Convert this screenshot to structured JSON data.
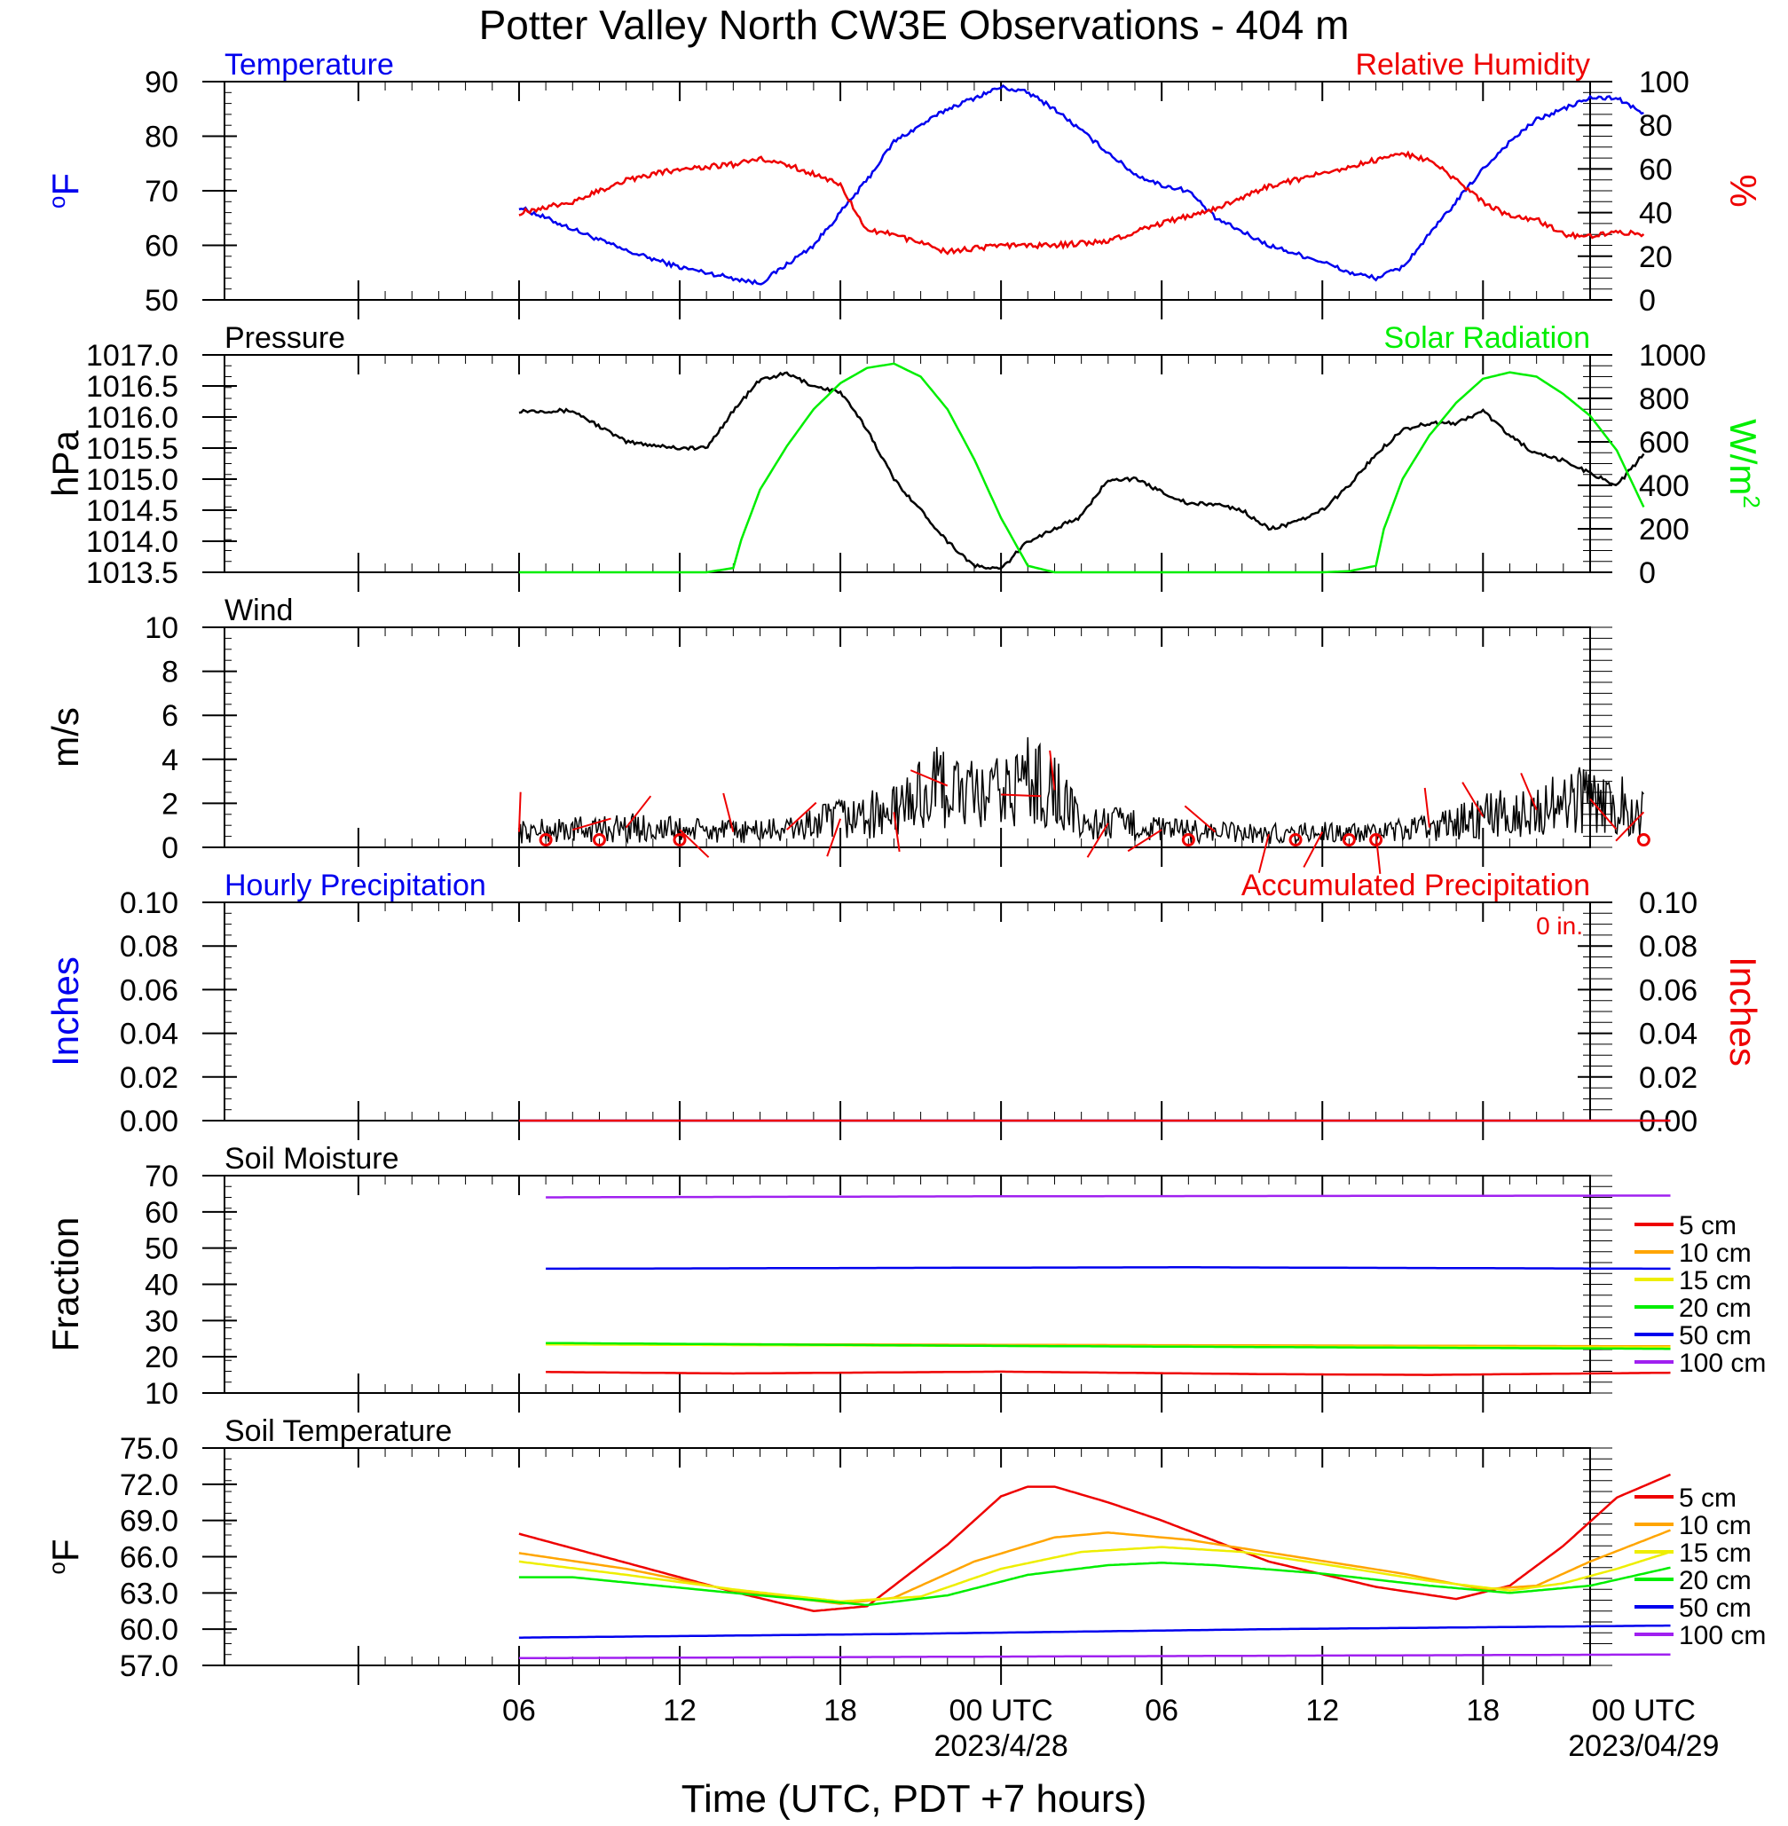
{
  "page": {
    "title": "Potter Valley North CW3E Observations - 404 m",
    "xlabel": "Time (UTC, PDT +7 hours)"
  },
  "x_axis": {
    "hours_range": [
      -5,
      46
    ],
    "ticks": [
      {
        "hour": 6,
        "label": "06",
        "date": ""
      },
      {
        "hour": 12,
        "label": "12",
        "date": ""
      },
      {
        "hour": 18,
        "label": "18",
        "date": ""
      },
      {
        "hour": 24,
        "label": "00 UTC",
        "date": "2023/4/28"
      },
      {
        "hour": 30,
        "label": "06",
        "date": ""
      },
      {
        "hour": 36,
        "label": "12",
        "date": ""
      },
      {
        "hour": 42,
        "label": "18",
        "date": ""
      },
      {
        "hour": 48,
        "label": "00 UTC",
        "date": "2023/04/29"
      }
    ]
  },
  "colors": {
    "temperature": "#0000ee",
    "humidity": "#ee0000",
    "pressure": "#000000",
    "solar": "#00ee00",
    "wind": "#000000",
    "barbs": "#ee0000",
    "precip_hourly": "#0000ee",
    "precip_accum": "#ee0000"
  },
  "chart_data": [
    {
      "id": "temp_rh",
      "type": "line",
      "title_left": "Temperature",
      "title_right": "Relative Humidity",
      "ylabel_left": "oF",
      "ylabel_right": "%",
      "ylim_left": [
        50,
        90
      ],
      "ylim_right": [
        0,
        100
      ],
      "yticks_left": [
        "50",
        "60",
        "70",
        "80",
        "90"
      ],
      "yticks_right": [
        "0",
        "20",
        "40",
        "60",
        "80",
        "100"
      ],
      "series": [
        {
          "name": "Temperature",
          "axis": "left",
          "color": "#0000ee",
          "x": [
            6,
            8,
            10,
            12,
            14,
            15,
            17,
            18,
            19,
            20,
            22,
            23,
            24,
            25,
            26,
            27,
            28,
            29,
            30,
            31,
            32,
            34,
            36,
            37,
            38,
            39,
            40,
            41,
            42,
            43,
            44,
            45,
            46,
            47,
            48
          ],
          "y": [
            67,
            63,
            59,
            56,
            54,
            53,
            60,
            66,
            72,
            79,
            85,
            87,
            89,
            88,
            85,
            81,
            77,
            73,
            71,
            70,
            65,
            60,
            57,
            55,
            54,
            56,
            62,
            68,
            74,
            79,
            83,
            85,
            87,
            87,
            84
          ]
        },
        {
          "name": "Relative Humidity",
          "axis": "right",
          "color": "#ee0000",
          "x": [
            6,
            8,
            10,
            12,
            14,
            15,
            16,
            18,
            19,
            20,
            22,
            24,
            26,
            28,
            30,
            32,
            34,
            36,
            38,
            39,
            40,
            41,
            42,
            43,
            44,
            45,
            46,
            47,
            48
          ],
          "y": [
            40,
            45,
            55,
            60,
            62,
            65,
            62,
            53,
            32,
            30,
            22,
            25,
            25,
            27,
            35,
            42,
            52,
            58,
            64,
            67,
            64,
            55,
            45,
            38,
            37,
            30,
            29,
            31,
            30
          ]
        }
      ]
    },
    {
      "id": "pressure_solar",
      "type": "line",
      "title_left": "Pressure",
      "title_right": "Solar Radiation",
      "ylabel_left": "hPa",
      "ylabel_right": "W/m2",
      "ylim_left": [
        1013.5,
        1017.0
      ],
      "ylim_right": [
        0,
        1000
      ],
      "yticks_left": [
        "1013.5",
        "1014.0",
        "1014.5",
        "1015.0",
        "1015.5",
        "1016.0",
        "1016.5",
        "1017.0"
      ],
      "yticks_right": [
        "0",
        "200",
        "400",
        "600",
        "800",
        "1000"
      ],
      "series": [
        {
          "name": "Pressure",
          "axis": "left",
          "color": "#000000",
          "x": [
            6,
            8,
            10,
            12,
            13,
            14,
            15,
            16,
            17,
            18,
            19,
            20,
            21,
            22,
            23,
            24,
            25,
            26,
            27,
            28,
            29,
            30,
            31,
            32,
            33,
            34,
            35,
            36,
            37,
            38,
            39,
            40,
            41,
            42,
            43,
            44,
            45,
            46,
            47,
            48
          ],
          "y": [
            1016.1,
            1016.1,
            1015.6,
            1015.5,
            1015.5,
            1016.1,
            1016.6,
            1016.7,
            1016.5,
            1016.4,
            1015.8,
            1015.0,
            1014.5,
            1014.0,
            1013.6,
            1013.55,
            1014.0,
            1014.2,
            1014.4,
            1015.0,
            1015.0,
            1014.8,
            1014.6,
            1014.6,
            1014.5,
            1014.2,
            1014.3,
            1014.5,
            1014.9,
            1015.4,
            1015.8,
            1015.9,
            1015.9,
            1016.1,
            1015.7,
            1015.4,
            1015.3,
            1015.1,
            1014.9,
            1015.4
          ]
        },
        {
          "name": "Solar Radiation",
          "axis": "right",
          "color": "#00ee00",
          "x": [
            6,
            13,
            14,
            14.3,
            15,
            16,
            17,
            18,
            19,
            20,
            21,
            22,
            23,
            24,
            25,
            26,
            27,
            28,
            29,
            30,
            31,
            32,
            33,
            34,
            35,
            36,
            37,
            38,
            38.3,
            39,
            40,
            41,
            42,
            43,
            44,
            45,
            46,
            47,
            48
          ],
          "y": [
            0,
            0,
            20,
            150,
            380,
            580,
            750,
            870,
            940,
            960,
            900,
            750,
            520,
            250,
            30,
            0,
            0,
            0,
            0,
            0,
            0,
            0,
            0,
            0,
            0,
            0,
            5,
            30,
            200,
            430,
            630,
            780,
            890,
            920,
            900,
            820,
            720,
            560,
            300
          ]
        }
      ]
    },
    {
      "id": "wind",
      "type": "line",
      "title_left": "Wind",
      "ylabel_left": "m/s",
      "ylim_left": [
        0,
        10
      ],
      "yticks_left": [
        "0",
        "2",
        "4",
        "6",
        "8",
        "10"
      ],
      "series": [
        {
          "name": "Wind",
          "axis": "left",
          "color": "#000000",
          "x": [
            6,
            8,
            10,
            12,
            14,
            16,
            18,
            20,
            21,
            22,
            23,
            24,
            25,
            26,
            27,
            28,
            29,
            30,
            32,
            34,
            36,
            38,
            40,
            42,
            44,
            46,
            47,
            48
          ],
          "y": [
            0.7,
            0.8,
            0.9,
            0.8,
            0.7,
            0.8,
            1.3,
            1.6,
            2.4,
            2.8,
            2.2,
            2.4,
            3.1,
            2.6,
            1.0,
            1.1,
            1.0,
            0.8,
            0.7,
            0.6,
            0.7,
            0.6,
            0.9,
            1.4,
            1.7,
            2.2,
            2.0,
            1.6
          ]
        }
      ],
      "barbs_hours": [
        6,
        8,
        10,
        12,
        14,
        16,
        18,
        20,
        22,
        24,
        26,
        28,
        30,
        32,
        34,
        36,
        38,
        40,
        42,
        44,
        46,
        48
      ],
      "calm_hours": [
        7,
        9,
        12,
        31,
        35,
        37,
        38,
        48
      ]
    },
    {
      "id": "precip",
      "type": "line",
      "title_left": "Hourly Precipitation",
      "title_right": "Accumulated Precipitation",
      "annotation": "0 in.",
      "ylabel_left": "Inches",
      "ylabel_right": "Inches",
      "ylim_left": [
        0,
        0.1
      ],
      "ylim_right": [
        0,
        0.1
      ],
      "yticks_left": [
        "0.00",
        "0.02",
        "0.04",
        "0.06",
        "0.08",
        "0.10"
      ],
      "yticks_right": [
        "0.00",
        "0.02",
        "0.04",
        "0.06",
        "0.08",
        "0.10"
      ],
      "series": [
        {
          "name": "Hourly Precipitation",
          "axis": "left",
          "color": "#0000ee",
          "x": [
            6,
            49
          ],
          "y": [
            0,
            0
          ]
        },
        {
          "name": "Accumulated Precipitation",
          "axis": "left",
          "color": "#ee0000",
          "x": [
            6,
            49
          ],
          "y": [
            0,
            0
          ]
        }
      ]
    },
    {
      "id": "soil_moisture",
      "type": "line",
      "title_left": "Soil Moisture",
      "ylabel_left": "Fraction",
      "ylim_left": [
        10,
        70
      ],
      "yticks_left": [
        "10",
        "20",
        "30",
        "40",
        "50",
        "60",
        "70"
      ],
      "legend": [
        "5 cm",
        "10 cm",
        "15 cm",
        "20 cm",
        "50 cm",
        "100 cm"
      ],
      "series": [
        {
          "name": "5 cm",
          "color": "#ee0000",
          "x": [
            7,
            14,
            24,
            34,
            40,
            49
          ],
          "y": [
            15.8,
            15.4,
            15.9,
            15.2,
            15.0,
            15.6
          ]
        },
        {
          "name": "10 cm",
          "color": "#ffa500",
          "x": [
            7,
            24,
            49
          ],
          "y": [
            23.6,
            23.3,
            22.9
          ]
        },
        {
          "name": "15 cm",
          "color": "#eeee00",
          "x": [
            7,
            24,
            49
          ],
          "y": [
            23.4,
            23.0,
            22.6
          ]
        },
        {
          "name": "20 cm",
          "color": "#00ee00",
          "x": [
            7,
            24,
            49
          ],
          "y": [
            23.8,
            23.0,
            22.2
          ]
        },
        {
          "name": "50 cm",
          "color": "#0000ee",
          "x": [
            7,
            24,
            31,
            49
          ],
          "y": [
            44.3,
            44.6,
            44.7,
            44.3
          ]
        },
        {
          "name": "100 cm",
          "color": "#a020f0",
          "x": [
            7,
            24,
            49
          ],
          "y": [
            64.0,
            64.3,
            64.5
          ]
        }
      ]
    },
    {
      "id": "soil_temp",
      "type": "line",
      "title_left": "Soil Temperature",
      "ylabel_left": "oF",
      "ylim_left": [
        57,
        75
      ],
      "yticks_left": [
        "57.0",
        "60.0",
        "63.0",
        "66.0",
        "69.0",
        "72.0",
        "75.0"
      ],
      "legend": [
        "5 cm",
        "10 cm",
        "15 cm",
        "20 cm",
        "50 cm",
        "100 cm"
      ],
      "series": [
        {
          "name": "5 cm",
          "color": "#ee0000",
          "x": [
            6,
            10,
            14,
            17,
            19,
            22,
            24,
            25,
            26,
            28,
            30,
            34,
            38,
            41,
            43,
            45,
            47,
            49
          ],
          "y": [
            67.9,
            65.5,
            63.1,
            61.5,
            61.9,
            67.0,
            71.0,
            71.8,
            71.8,
            70.5,
            69.0,
            65.6,
            63.5,
            62.5,
            63.6,
            66.9,
            70.9,
            72.8
          ]
        },
        {
          "name": "10 cm",
          "color": "#ffa500",
          "x": [
            6,
            10,
            14,
            18,
            20,
            23,
            26,
            28,
            31,
            35,
            39,
            42,
            44,
            46,
            49
          ],
          "y": [
            66.3,
            65.0,
            63.2,
            62.1,
            62.6,
            65.6,
            67.6,
            68.0,
            67.4,
            66.0,
            64.6,
            63.3,
            63.6,
            65.6,
            68.2
          ]
        },
        {
          "name": "15 cm",
          "color": "#eeee00",
          "x": [
            6,
            10,
            14,
            18,
            21,
            24,
            27,
            30,
            33,
            36,
            40,
            43,
            45,
            47,
            49
          ],
          "y": [
            65.6,
            64.5,
            63.3,
            62.3,
            62.7,
            65.0,
            66.4,
            66.8,
            66.4,
            65.4,
            64.0,
            63.2,
            63.8,
            65.0,
            66.4
          ]
        },
        {
          "name": "20 cm",
          "color": "#00ee00",
          "x": [
            6,
            8,
            14,
            19,
            22,
            25,
            28,
            30,
            32,
            36,
            40,
            43,
            46,
            49
          ],
          "y": [
            64.3,
            64.3,
            63.0,
            62.0,
            62.8,
            64.5,
            65.3,
            65.5,
            65.3,
            64.6,
            63.6,
            63.0,
            63.6,
            65.1
          ]
        },
        {
          "name": "50 cm",
          "color": "#0000ee",
          "x": [
            6,
            20,
            34,
            49
          ],
          "y": [
            59.3,
            59.6,
            60.0,
            60.3
          ]
        },
        {
          "name": "100 cm",
          "color": "#a020f0",
          "x": [
            6,
            20,
            34,
            49
          ],
          "y": [
            57.6,
            57.7,
            57.8,
            57.9
          ]
        }
      ]
    }
  ]
}
